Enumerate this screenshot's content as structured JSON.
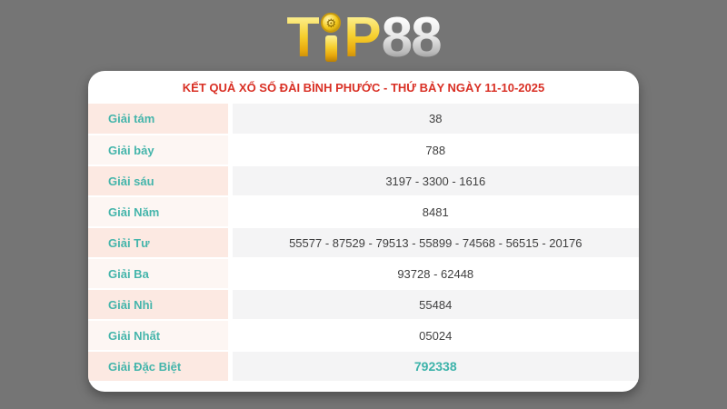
{
  "page": {
    "background_color": "#757575"
  },
  "logo": {
    "letter_t": "T",
    "letter_p": "P",
    "text_88": "88",
    "coin_icon": "gold-gear-coin",
    "gold_color": "#f0c41b",
    "silver_color": "#d9d9d9"
  },
  "results": {
    "title": "KẾT QUẢ XỔ SỐ ĐÀI BÌNH PHƯỚC - THỨ BẢY NGÀY 11-10-2025",
    "title_color": "#d93025",
    "label_color": "#45b5ab",
    "highlight_color": "#3cb3aa",
    "rows": [
      {
        "label": "Giải tám",
        "value": "38"
      },
      {
        "label": "Giải bảy",
        "value": "788"
      },
      {
        "label": "Giải sáu",
        "value": "3197 - 3300 - 1616"
      },
      {
        "label": "Giải Năm",
        "value": "8481"
      },
      {
        "label": "Giải Tư",
        "value": "55577 - 87529 - 79513 - 55899 - 74568 - 56515 - 20176"
      },
      {
        "label": "Giải Ba",
        "value": "93728 - 62448"
      },
      {
        "label": "Giải Nhì",
        "value": "55484"
      },
      {
        "label": "Giải Nhất",
        "value": "05024"
      },
      {
        "label": "Giải Đặc Biệt",
        "value": "792338",
        "highlight": true
      }
    ]
  }
}
